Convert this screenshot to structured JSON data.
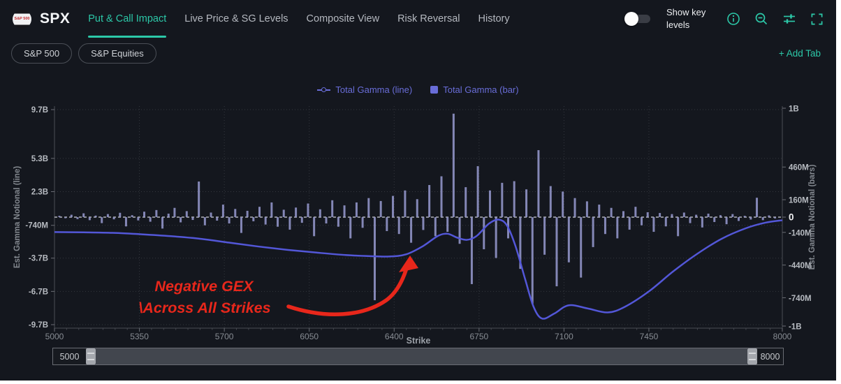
{
  "header": {
    "logo_text": "S&P 500",
    "symbol": "SPX",
    "tabs": [
      {
        "label": "Put & Call Impact",
        "active": true
      },
      {
        "label": "Live Price & SG Levels",
        "active": false
      },
      {
        "label": "Composite View",
        "active": false
      },
      {
        "label": "Risk Reversal",
        "active": false
      },
      {
        "label": "History",
        "active": false
      }
    ],
    "show_key_levels": {
      "label": "Show key levels",
      "on": false
    },
    "icons": [
      "info-icon",
      "zoom-out-icon",
      "indicator-settings-icon",
      "fullscreen-icon"
    ]
  },
  "tab_bar": {
    "pills": [
      {
        "label": "S&P 500"
      },
      {
        "label": "S&P Equities"
      }
    ],
    "add_tab_label": "+ Add Tab"
  },
  "colors": {
    "accent": "#2cc8a8",
    "line": "#5357d8",
    "bar": "#9094c7",
    "legend_text": "#696dd8",
    "annotation_red": "#e8271b",
    "zero_line": "#d2d4d9"
  },
  "chart_data": {
    "type": "combo",
    "xlabel": "Strike",
    "x_range": [
      5000,
      8000
    ],
    "x_ticks": [
      5000,
      5350,
      5700,
      6050,
      6400,
      6750,
      7100,
      7450,
      8000
    ],
    "left_axis": {
      "label": "Est. Gamma Notional (line)",
      "unit": "B",
      "ticks": [
        {
          "label": "9.7B",
          "value_M": 9700
        },
        {
          "label": "5.3B",
          "value_M": 5300
        },
        {
          "label": "2.3B",
          "value_M": 2300
        },
        {
          "label": "-740M",
          "value_M": -740
        },
        {
          "label": "-3.7B",
          "value_M": -3700
        },
        {
          "label": "-6.7B",
          "value_M": -6700
        },
        {
          "label": "-9.7B",
          "value_M": -9700
        }
      ]
    },
    "right_axis": {
      "label": "Est. Gamma Notional (bars)",
      "unit": "M",
      "ticks": [
        {
          "label": "1B",
          "value_M": 1000
        },
        {
          "label": "460M",
          "value_M": 460
        },
        {
          "label": "160M",
          "value_M": 160
        },
        {
          "label": "0",
          "value_M": 0
        },
        {
          "label": "-140M",
          "value_M": -140
        },
        {
          "label": "-440M",
          "value_M": -440
        },
        {
          "label": "-740M",
          "value_M": -740
        },
        {
          "label": "-1B",
          "value_M": -1000
        }
      ]
    },
    "series": [
      {
        "name": "Total Gamma (line)",
        "type": "line",
        "axis": "left",
        "unit": "B",
        "points": [
          [
            5000,
            -1.35
          ],
          [
            5120,
            -1.37
          ],
          [
            5240,
            -1.42
          ],
          [
            5360,
            -1.55
          ],
          [
            5480,
            -1.72
          ],
          [
            5600,
            -1.95
          ],
          [
            5720,
            -2.3
          ],
          [
            5840,
            -2.65
          ],
          [
            5960,
            -2.95
          ],
          [
            6080,
            -3.2
          ],
          [
            6200,
            -3.42
          ],
          [
            6300,
            -3.52
          ],
          [
            6380,
            -3.55
          ],
          [
            6450,
            -3.35
          ],
          [
            6520,
            -2.6
          ],
          [
            6580,
            -1.7
          ],
          [
            6620,
            -1.5
          ],
          [
            6660,
            -1.85
          ],
          [
            6700,
            -2.05
          ],
          [
            6740,
            -1.7
          ],
          [
            6790,
            -0.6
          ],
          [
            6830,
            -0.22
          ],
          [
            6865,
            -0.75
          ],
          [
            6900,
            -2.6
          ],
          [
            6940,
            -5.6
          ],
          [
            6975,
            -8.1
          ],
          [
            7010,
            -9.15
          ],
          [
            7060,
            -8.7
          ],
          [
            7120,
            -7.95
          ],
          [
            7200,
            -8.25
          ],
          [
            7280,
            -8.6
          ],
          [
            7350,
            -8.1
          ],
          [
            7450,
            -6.7
          ],
          [
            7550,
            -4.9
          ],
          [
            7650,
            -3.3
          ],
          [
            7750,
            -1.95
          ],
          [
            7850,
            -1.0
          ],
          [
            7930,
            -0.5
          ],
          [
            8000,
            -0.28
          ]
        ]
      },
      {
        "name": "Total Gamma (bar)",
        "type": "bar",
        "axis": "right",
        "unit": "M",
        "points": [
          [
            5020,
            12
          ],
          [
            5045,
            -10
          ],
          [
            5070,
            22
          ],
          [
            5095,
            -18
          ],
          [
            5120,
            35
          ],
          [
            5145,
            -28
          ],
          [
            5170,
            14
          ],
          [
            5195,
            -55
          ],
          [
            5220,
            28
          ],
          [
            5245,
            -20
          ],
          [
            5270,
            40
          ],
          [
            5295,
            -85
          ],
          [
            5320,
            18
          ],
          [
            5345,
            -30
          ],
          [
            5370,
            50
          ],
          [
            5395,
            -42
          ],
          [
            5420,
            65
          ],
          [
            5445,
            -105
          ],
          [
            5470,
            32
          ],
          [
            5495,
            85
          ],
          [
            5520,
            -48
          ],
          [
            5545,
            55
          ],
          [
            5570,
            -26
          ],
          [
            5595,
            327
          ],
          [
            5620,
            -75
          ],
          [
            5645,
            42
          ],
          [
            5670,
            -32
          ],
          [
            5695,
            115
          ],
          [
            5720,
            -58
          ],
          [
            5745,
            75
          ],
          [
            5770,
            -145
          ],
          [
            5795,
            58
          ],
          [
            5820,
            -38
          ],
          [
            5845,
            95
          ],
          [
            5870,
            -68
          ],
          [
            5895,
            135
          ],
          [
            5920,
            -88
          ],
          [
            5945,
            68
          ],
          [
            5970,
            -115
          ],
          [
            5995,
            88
          ],
          [
            6020,
            -52
          ],
          [
            6045,
            125
          ],
          [
            6070,
            -175
          ],
          [
            6095,
            72
          ],
          [
            6120,
            -58
          ],
          [
            6145,
            155
          ],
          [
            6170,
            -88
          ],
          [
            6195,
            108
          ],
          [
            6220,
            -195
          ],
          [
            6245,
            135
          ],
          [
            6270,
            -98
          ],
          [
            6295,
            175
          ],
          [
            6320,
            -763
          ],
          [
            6345,
            148
          ],
          [
            6370,
            -128
          ],
          [
            6395,
            195
          ],
          [
            6420,
            -155
          ],
          [
            6445,
            245
          ],
          [
            6470,
            -235
          ],
          [
            6495,
            165
          ],
          [
            6520,
            -118
          ],
          [
            6545,
            295
          ],
          [
            6570,
            -175
          ],
          [
            6595,
            375
          ],
          [
            6620,
            -135
          ],
          [
            6645,
            950
          ],
          [
            6670,
            -245
          ],
          [
            6695,
            275
          ],
          [
            6720,
            -615
          ],
          [
            6745,
            468
          ],
          [
            6770,
            -295
          ],
          [
            6795,
            245
          ],
          [
            6820,
            -375
          ],
          [
            6845,
            315
          ],
          [
            6870,
            -195
          ],
          [
            6895,
            330
          ],
          [
            6920,
            -475
          ],
          [
            6945,
            255
          ],
          [
            6970,
            -795
          ],
          [
            6995,
            615
          ],
          [
            7020,
            -345
          ],
          [
            7045,
            285
          ],
          [
            7070,
            -635
          ],
          [
            7095,
            235
          ],
          [
            7120,
            -415
          ],
          [
            7145,
            175
          ],
          [
            7170,
            -555
          ],
          [
            7195,
            145
          ],
          [
            7220,
            -275
          ],
          [
            7245,
            115
          ],
          [
            7270,
            -155
          ],
          [
            7295,
            85
          ],
          [
            7320,
            -195
          ],
          [
            7345,
            55
          ],
          [
            7370,
            -115
          ],
          [
            7395,
            95
          ],
          [
            7420,
            -75
          ],
          [
            7445,
            45
          ],
          [
            7470,
            -135
          ],
          [
            7495,
            38
          ],
          [
            7520,
            -85
          ],
          [
            7545,
            28
          ],
          [
            7570,
            -175
          ],
          [
            7595,
            42
          ],
          [
            7620,
            -55
          ],
          [
            7645,
            22
          ],
          [
            7670,
            -95
          ],
          [
            7695,
            32
          ],
          [
            7720,
            -45
          ],
          [
            7745,
            18
          ],
          [
            7770,
            -65
          ],
          [
            7795,
            28
          ],
          [
            7820,
            -35
          ],
          [
            7845,
            12
          ],
          [
            7870,
            -22
          ],
          [
            7895,
            178
          ],
          [
            7920,
            -28
          ],
          [
            7945,
            16
          ],
          [
            7970,
            -12
          ]
        ]
      }
    ],
    "annotation": {
      "line1": "Negative GEX",
      "line2": "\\Across All Strikes",
      "color": "#e8271b"
    },
    "grid": "dotted",
    "legend_position": "top-center"
  },
  "strike_slider": {
    "min_value": "5000",
    "max_value": "8000"
  }
}
